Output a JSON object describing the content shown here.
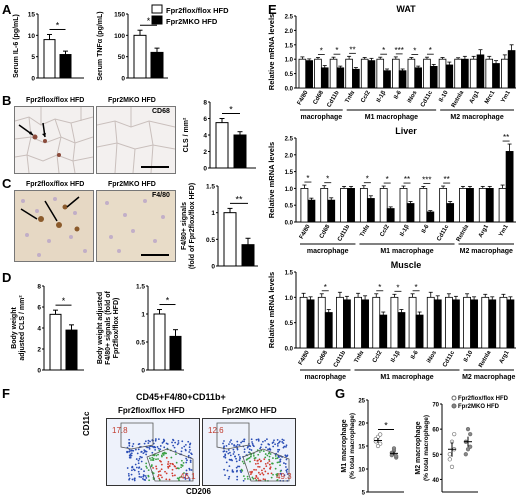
{
  "panel_letters": [
    "A",
    "B",
    "C",
    "D",
    "E",
    "F",
    "G"
  ],
  "legend": {
    "floxflox": "Fpr2flox/flox HFD",
    "mko": "Fpr2MKO HFD"
  },
  "colors": {
    "floxflox": "#ffffff",
    "mko": "#000000"
  },
  "images": {
    "B_left_title": "Fpr2flox/flox HFD",
    "B_right_title": "Fpr2MKO HFD",
    "B_stain": "CD68",
    "C_left_title": "Fpr2flox/flox HFD",
    "C_right_title": "Fpr2MKO HFD",
    "C_stain": "F4/80"
  },
  "flow": {
    "title": "CD45+F4/80+CD11b+",
    "left_title": "Fpr2flox/flox HFD",
    "right_title": "Fpr2MKO HFD",
    "left_upper": "17.8",
    "left_lower": "46.1",
    "right_upper": "12.6",
    "right_lower": "49.3",
    "xlabel": "CD206",
    "ylabel": "CD11c"
  },
  "e_titles": {
    "wat": "WAT",
    "liver": "Liver",
    "muscle": "Muscle"
  },
  "chart_data": [
    {
      "id": "A1",
      "type": "bar",
      "categories": [
        "Fpr2flox/flox HFD",
        "Fpr2MKO HFD"
      ],
      "values": [
        9.0,
        5.5
      ],
      "errors": [
        1.2,
        0.8
      ],
      "ylabel": "Serum IL-6 (pg/mL)",
      "ylim": [
        0,
        15
      ],
      "yticks": [
        0,
        5,
        10,
        15
      ],
      "sig": "*"
    },
    {
      "id": "A2",
      "type": "bar",
      "categories": [
        "Fpr2flox/flox HFD",
        "Fpr2MKO HFD"
      ],
      "values": [
        100,
        60
      ],
      "errors": [
        12,
        10
      ],
      "ylabel": "Serum TNFα (pg/mL)",
      "ylim": [
        0,
        150
      ],
      "yticks": [
        0,
        50,
        100,
        150
      ],
      "sig": "*"
    },
    {
      "id": "B",
      "type": "bar",
      "categories": [
        "Fpr2flox/flox HFD",
        "Fpr2MKO HFD"
      ],
      "values": [
        5.5,
        4.0
      ],
      "errors": [
        0.5,
        0.4
      ],
      "ylabel": "CLS / mm²",
      "ylim": [
        0,
        8
      ],
      "yticks": [
        0,
        2,
        4,
        6,
        8
      ],
      "sig": "*"
    },
    {
      "id": "C",
      "type": "bar",
      "categories": [
        "Fpr2flox/flox HFD",
        "Fpr2MKO HFD"
      ],
      "values": [
        1.0,
        0.4
      ],
      "errors": [
        0.08,
        0.12
      ],
      "ylabel": "F4/80+ signals (fold of Fpr2flox/flox HFD)",
      "ylim": [
        0,
        1.5
      ],
      "yticks": [
        0.0,
        0.5,
        1.0,
        1.5
      ],
      "sig": "**"
    },
    {
      "id": "D1",
      "type": "bar",
      "categories": [
        "Fpr2flox/flox HFD",
        "Fpr2MKO HFD"
      ],
      "values": [
        5.3,
        3.8
      ],
      "errors": [
        0.4,
        0.5
      ],
      "ylabel": "Body weight adjusted CLS / mm²",
      "ylim": [
        0,
        8
      ],
      "yticks": [
        0,
        2,
        4,
        6,
        8
      ],
      "sig": "*"
    },
    {
      "id": "D2",
      "type": "bar",
      "categories": [
        "Fpr2flox/flox HFD",
        "Fpr2MKO HFD"
      ],
      "values": [
        1.0,
        0.6
      ],
      "errors": [
        0.08,
        0.12
      ],
      "ylabel": "Body weight adjusted F4/80+ signals (fold of Fpr2flox/flox HFD)",
      "ylim": [
        0,
        1.5
      ],
      "yticks": [
        0.0,
        0.5,
        1.0,
        1.5
      ],
      "sig": "*"
    },
    {
      "id": "E_WAT",
      "type": "bar",
      "title": "WAT",
      "ylabel": "Relative mRNA levels",
      "ylim": [
        0,
        2.5
      ],
      "yticks": [
        0.0,
        0.5,
        1.0,
        1.5,
        2.0,
        2.5
      ],
      "categories": [
        "F4/80",
        "Cd68",
        "Cd11b",
        "Tnfα",
        "Ccl2",
        "Il-1β",
        "Il-6",
        "iNos",
        "Cd11c",
        "Il-10",
        "Retnla",
        "Arg1",
        "Mrc1",
        "Ym1"
      ],
      "series": [
        {
          "name": "Fpr2flox/flox HFD",
          "values": [
            1,
            1,
            1,
            1,
            1,
            1,
            1,
            1,
            1,
            1,
            1,
            1,
            1,
            1
          ],
          "errors": [
            0.08,
            0.06,
            0.07,
            0.1,
            0.06,
            0.07,
            0.08,
            0.06,
            0.07,
            0.06,
            0.05,
            0.1,
            0.1,
            0.15
          ]
        },
        {
          "name": "Fpr2MKO HFD",
          "values": [
            0.95,
            0.7,
            0.7,
            0.65,
            0.95,
            0.6,
            0.6,
            0.7,
            0.75,
            0.8,
            1.0,
            1.15,
            0.85,
            1.3
          ],
          "errors": [
            0.06,
            0.08,
            0.06,
            0.06,
            0.08,
            0.06,
            0.06,
            0.06,
            0.07,
            0.1,
            0.1,
            0.18,
            0.1,
            0.2
          ]
        }
      ],
      "sig": [
        "",
        "*",
        "*",
        "**",
        "",
        "*",
        "***",
        "*",
        "*",
        "",
        "",
        "",
        "",
        ""
      ],
      "groups": [
        {
          "label": "macrophage",
          "from": 0,
          "to": 2
        },
        {
          "label": "M1 macrophage",
          "from": 3,
          "to": 8
        },
        {
          "label": "M2 macrophage",
          "from": 9,
          "to": 13
        }
      ]
    },
    {
      "id": "E_Liver",
      "type": "bar",
      "title": "Liver",
      "ylabel": "Relative mRNA levels",
      "ylim": [
        0,
        2.5
      ],
      "yticks": [
        0.0,
        0.5,
        1.0,
        1.5,
        2.0,
        2.5
      ],
      "categories": [
        "F4/80",
        "Cd68",
        "Cd11b",
        "Tnfα",
        "Ccl2",
        "Il-1β",
        "Il-6",
        "Cd11c",
        "Retnla",
        "Arg1",
        "Ym1"
      ],
      "series": [
        {
          "name": "Fpr2flox/flox HFD",
          "values": [
            1,
            1,
            1,
            1,
            1,
            1,
            1,
            1,
            1,
            1,
            1
          ],
          "errors": [
            0.1,
            0.08,
            0.06,
            0.08,
            0.07,
            0.07,
            0.06,
            0.07,
            0.06,
            0.06,
            0.1
          ]
        },
        {
          "name": "Fpr2MKO HFD",
          "values": [
            0.65,
            0.65,
            1.0,
            0.7,
            0.4,
            0.55,
            0.3,
            0.55,
            1.0,
            1.0,
            2.1
          ],
          "errors": [
            0.06,
            0.07,
            0.06,
            0.08,
            0.05,
            0.06,
            0.04,
            0.06,
            0.06,
            0.06,
            0.22
          ]
        }
      ],
      "sig": [
        "*",
        "*",
        "",
        "*",
        "*",
        "**",
        "***",
        "**",
        "",
        "",
        "**"
      ],
      "groups": [
        {
          "label": "macrophage",
          "from": 0,
          "to": 2
        },
        {
          "label": "M1 macrophage",
          "from": 3,
          "to": 7
        },
        {
          "label": "M2 macrophage",
          "from": 8,
          "to": 10
        }
      ]
    },
    {
      "id": "E_Muscle",
      "type": "bar",
      "title": "Muscle",
      "ylabel": "Relative mRNA levels",
      "ylim": [
        0,
        1.5
      ],
      "yticks": [
        0.0,
        0.5,
        1.0,
        1.5
      ],
      "categories": [
        "F4/80",
        "Cd68",
        "Cd11b",
        "Tnfα",
        "Ccl2",
        "Il-1β",
        "Il-6",
        "iNos",
        "Cd11c",
        "Il-10",
        "Retnla",
        "Arg1"
      ],
      "series": [
        {
          "name": "Fpr2flox/flox HFD",
          "values": [
            1,
            1,
            1,
            1,
            1,
            1,
            1,
            1,
            1,
            1,
            1,
            1
          ],
          "errors": [
            0.08,
            0.07,
            0.1,
            0.08,
            0.07,
            0.06,
            0.07,
            0.1,
            0.07,
            0.07,
            0.06,
            0.06
          ]
        },
        {
          "name": "Fpr2MKO HFD",
          "values": [
            0.95,
            0.7,
            0.95,
            0.95,
            0.65,
            0.7,
            0.65,
            0.95,
            0.95,
            0.95,
            0.95,
            0.95
          ],
          "errors": [
            0.06,
            0.06,
            0.07,
            0.08,
            0.06,
            0.06,
            0.06,
            0.08,
            0.07,
            0.06,
            0.06,
            0.06
          ]
        }
      ],
      "sig": [
        "",
        "*",
        "",
        "",
        "*",
        "*",
        "*",
        "",
        "",
        "",
        "",
        ""
      ],
      "groups": [
        {
          "label": "macrophage",
          "from": 0,
          "to": 2
        },
        {
          "label": "M1 macrophage",
          "from": 3,
          "to": 8
        },
        {
          "label": "M2 macrophage",
          "from": 9,
          "to": 11
        }
      ]
    },
    {
      "id": "G1",
      "type": "scatter",
      "ylabel": "M1 macrophage (% total macrophage)",
      "ylim": [
        5,
        25
      ],
      "yticks": [
        5,
        10,
        15,
        20,
        25
      ],
      "categories": [
        "Fpr2flox/flox HFD",
        "Fpr2MKO HFD"
      ],
      "points": [
        [
          16,
          17,
          15.5,
          16.5,
          15,
          17.5
        ],
        [
          13,
          14,
          12.5,
          13.5,
          14.5,
          12.8
        ]
      ],
      "means": [
        16.2,
        13.4
      ],
      "sem": [
        0.5,
        0.4
      ],
      "sig": "*"
    },
    {
      "id": "G2",
      "type": "scatter",
      "ylabel": "M2 macrophage (% total macrophage)",
      "ylim": [
        35,
        70
      ],
      "yticks": [
        40,
        50,
        60,
        70
      ],
      "categories": [
        "Fpr2flox/flox HFD",
        "Fpr2MKO HFD"
      ],
      "points": [
        [
          48,
          55,
          58,
          50,
          45,
          52
        ],
        [
          55,
          52,
          58,
          50,
          60,
          53
        ]
      ],
      "means": [
        52,
        55
      ],
      "sem": [
        3,
        2
      ],
      "sig": ""
    }
  ]
}
